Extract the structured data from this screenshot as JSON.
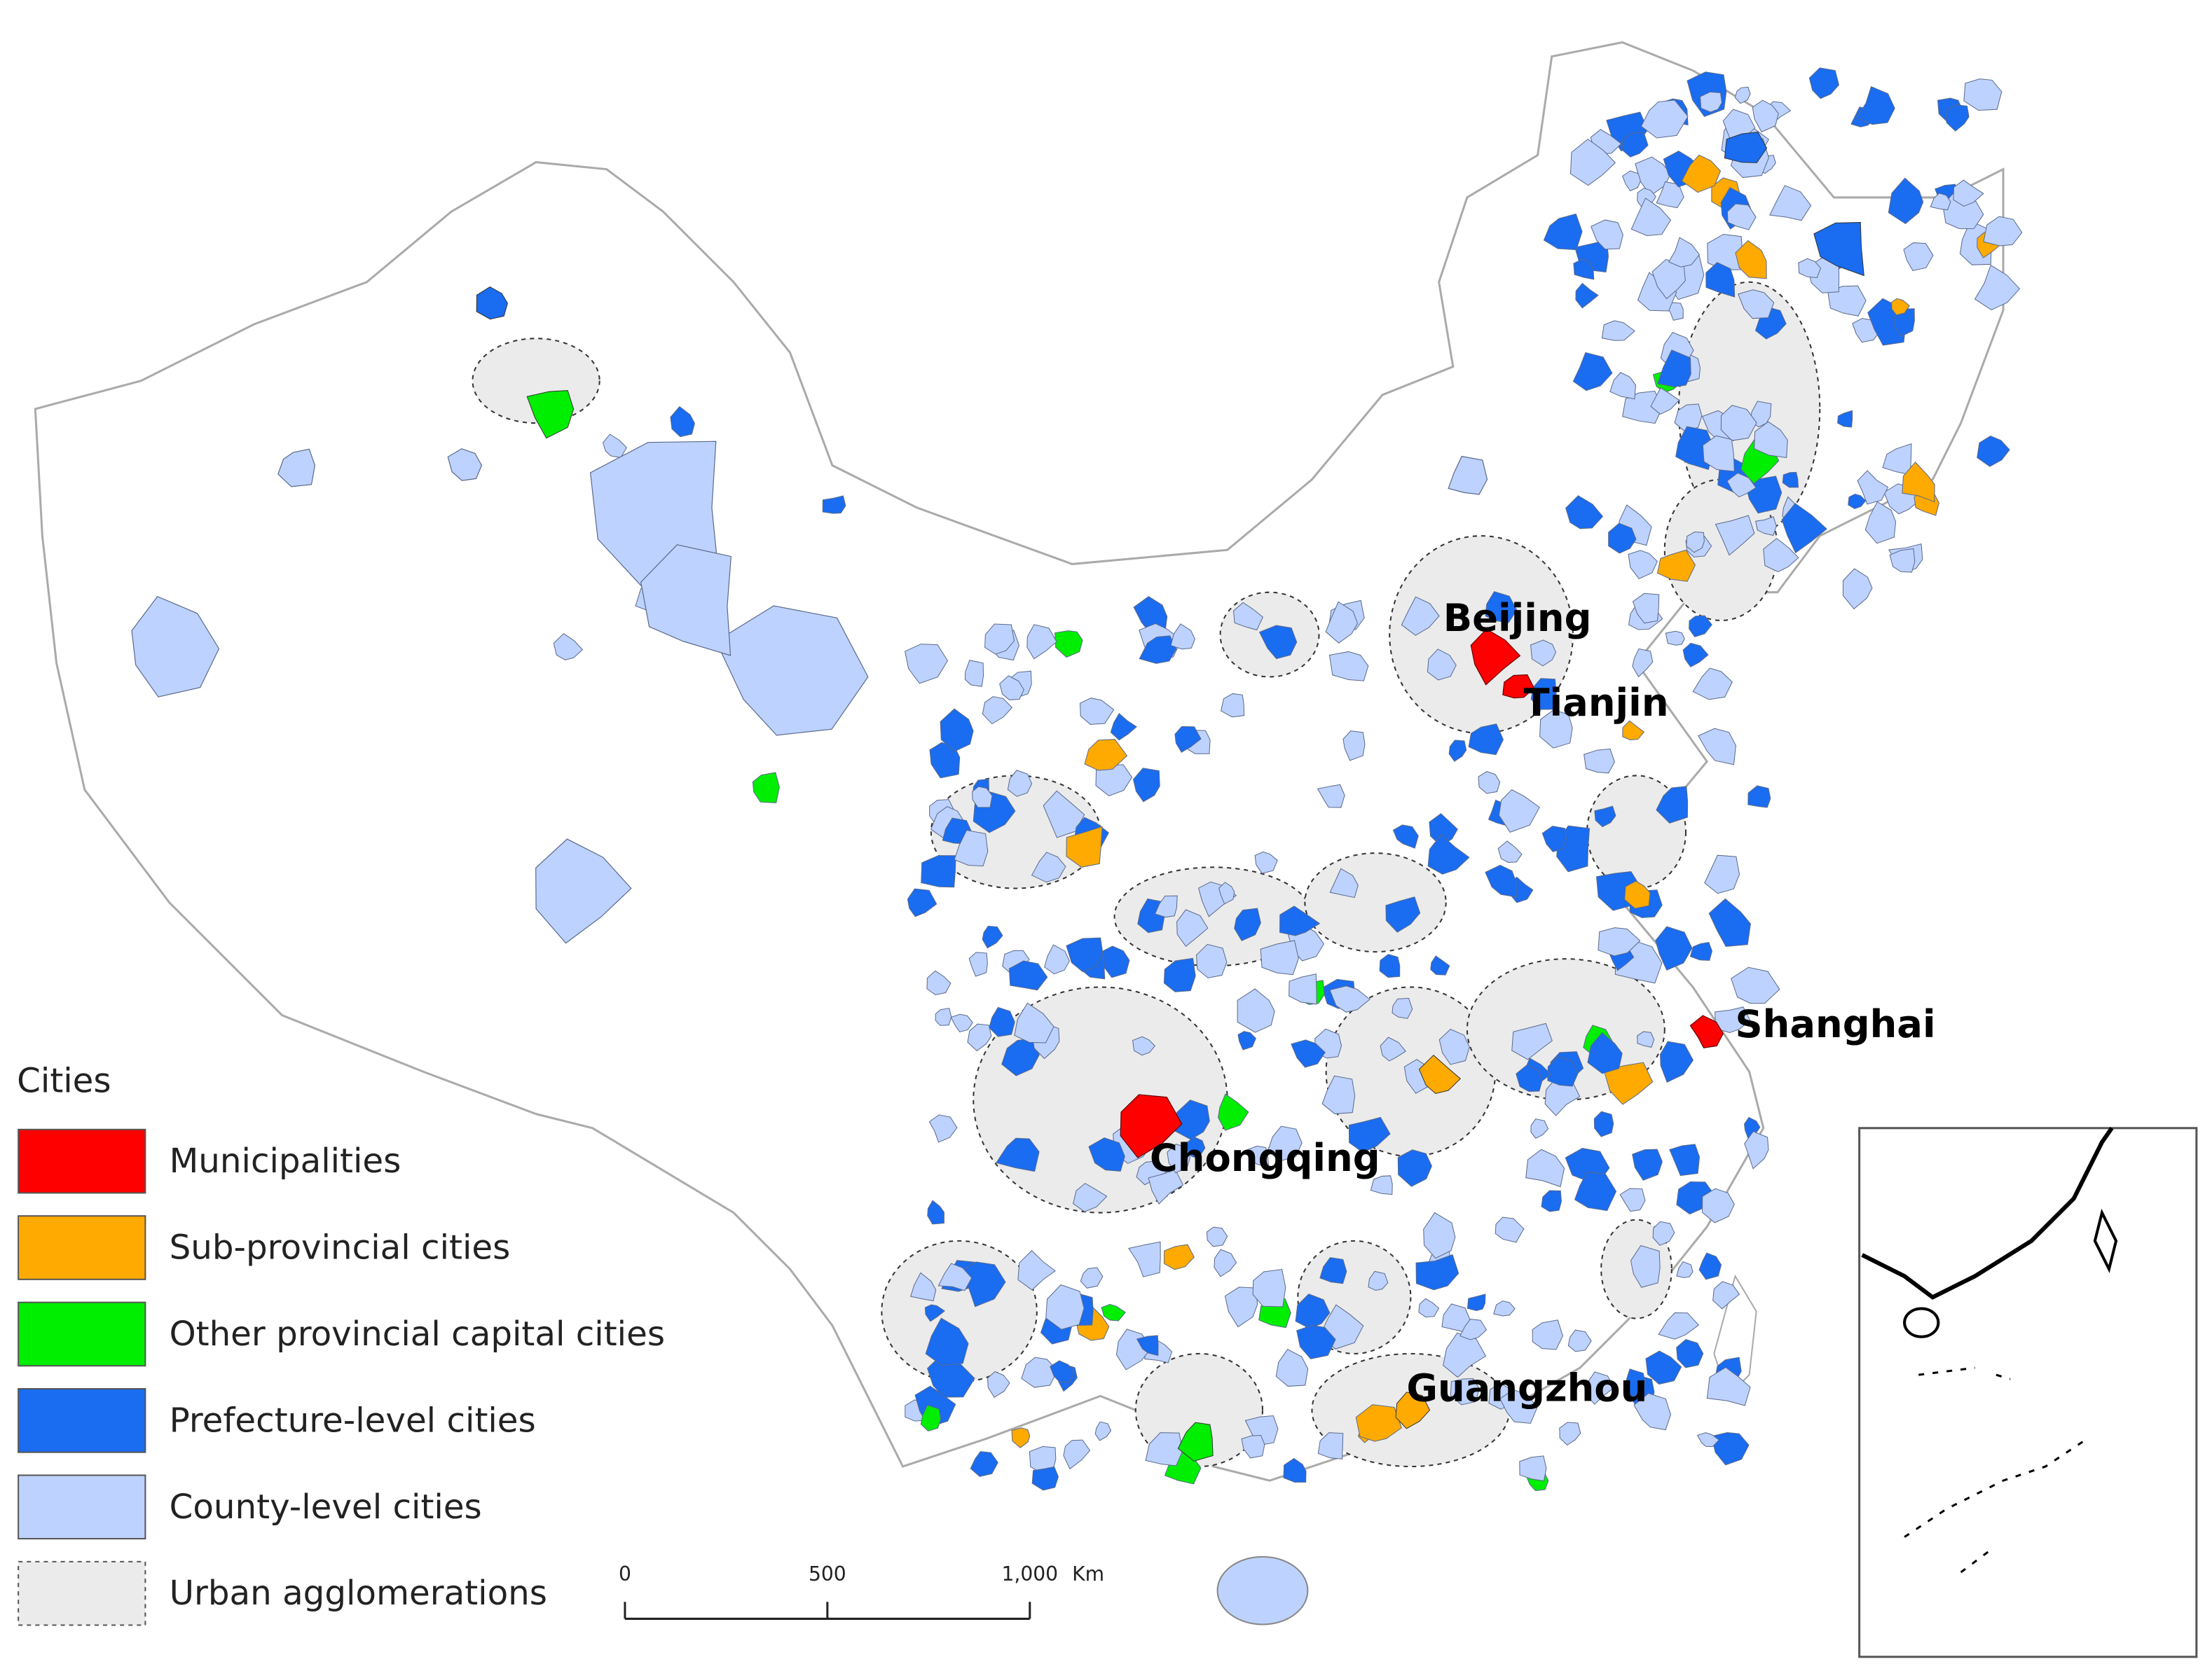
{
  "map": {
    "city_labels": [
      "Beijing",
      "Tianjin",
      "Shanghai",
      "Chongqing",
      "Guangzhou"
    ],
    "legend": {
      "title": "Cities",
      "items": [
        {
          "label": "Municipalities",
          "color": "#ff0000"
        },
        {
          "label": "Sub-provincial cities",
          "color": "#ffaa00"
        },
        {
          "label": "Other provincial capital cities",
          "color": "#00ee00"
        },
        {
          "label": "Prefecture-level cities",
          "color": "#1a6cf0"
        },
        {
          "label": "County-level cities",
          "color": "#bed2ff"
        },
        {
          "label": "Urban agglomerations",
          "color": "#ebebeb"
        }
      ]
    },
    "scale_bar": {
      "ticks": [
        {
          "value": 0,
          "label": "0"
        },
        {
          "value": 500,
          "label": "500"
        },
        {
          "value": 1000,
          "label": "1,000"
        }
      ],
      "unit": "Km"
    }
  }
}
